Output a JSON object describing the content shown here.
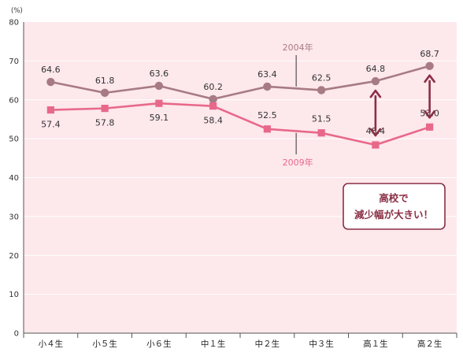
{
  "chart_data": {
    "type": "line",
    "y_unit": "(%)",
    "ylim": [
      0,
      80
    ],
    "y_ticks": [
      "0",
      "10",
      "20",
      "30",
      "40",
      "50",
      "60",
      "70",
      "80"
    ],
    "categories": [
      "小４生",
      "小５生",
      "小６生",
      "中１生",
      "中２生",
      "中３生",
      "高１生",
      "高２生"
    ],
    "series": [
      {
        "name": "2004年",
        "values": [
          64.6,
          61.8,
          63.6,
          60.2,
          63.4,
          62.5,
          64.8,
          68.7
        ],
        "labels": [
          "64.6",
          "61.8",
          "63.6",
          "60.2",
          "63.4",
          "62.5",
          "64.8",
          "68.7"
        ],
        "marker": "circle",
        "color": "#a77b83"
      },
      {
        "name": "2009年",
        "values": [
          57.4,
          57.8,
          59.1,
          58.4,
          52.5,
          51.5,
          48.4,
          53.0
        ],
        "labels": [
          "57.4",
          "57.8",
          "59.1",
          "58.4",
          "52.5",
          "51.5",
          "48.4",
          "53.0"
        ],
        "marker": "square",
        "color": "#e8688a"
      }
    ],
    "annotation": {
      "lines": [
        "高校で",
        "減少幅が大きい！"
      ],
      "arrow_categories": [
        "高１生",
        "高２生"
      ],
      "color": "#8a2f45"
    },
    "grid": "horizontal",
    "background": "#fde8ec"
  }
}
